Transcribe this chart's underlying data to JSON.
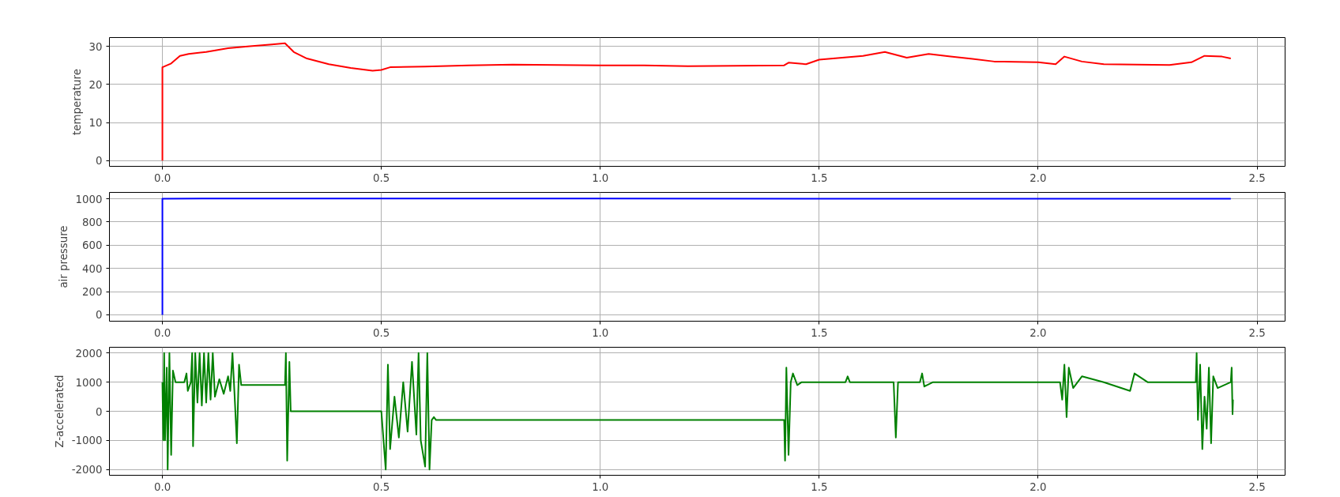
{
  "chart_data": [
    {
      "type": "line",
      "ylabel": "temperature",
      "xlim": [
        -0.121,
        2.564
      ],
      "xticks": [
        {
          "value": 0,
          "label": "0.0"
        },
        0.5,
        {
          "value": 1,
          "label": "1.0"
        },
        1.5,
        {
          "value": 2,
          "label": "2.0"
        },
        2.5
      ],
      "ylim": [
        -1.5,
        32.3
      ],
      "yticks": [
        0,
        10,
        20,
        30
      ],
      "grid": true,
      "series": [
        {
          "color": "#ff0000",
          "x": [
            0,
            0,
            0.02,
            0.04,
            0.06,
            0.1,
            0.15,
            0.2,
            0.25,
            0.28,
            0.3,
            0.33,
            0.38,
            0.43,
            0.48,
            0.5,
            0.52,
            0.6,
            0.7,
            0.8,
            1.0,
            1.1,
            1.2,
            1.42,
            1.43,
            1.47,
            1.5,
            1.6,
            1.65,
            1.7,
            1.75,
            1.8,
            1.85,
            1.9,
            2.0,
            2.04,
            2.06,
            2.1,
            2.15,
            2.3,
            2.35,
            2.38,
            2.42,
            2.44
          ],
          "values": [
            0,
            24.5,
            25.5,
            27.5,
            28,
            28.5,
            29.5,
            30,
            30.5,
            30.8,
            28.5,
            26.8,
            25.3,
            24.3,
            23.6,
            23.8,
            24.5,
            24.7,
            25,
            25.2,
            25,
            25,
            24.8,
            25,
            25.7,
            25.3,
            26.5,
            27.5,
            28.5,
            27,
            28,
            27.3,
            26.7,
            26,
            25.8,
            25.3,
            27.3,
            26,
            25.3,
            25.1,
            25.8,
            27.5,
            27.3,
            26.8
          ]
        }
      ]
    },
    {
      "type": "line",
      "ylabel": "air pressure",
      "xlim": [
        -0.121,
        2.564
      ],
      "xticks": [
        {
          "value": 0,
          "label": "0.0"
        },
        0.5,
        {
          "value": 1,
          "label": "1.0"
        },
        1.5,
        {
          "value": 2,
          "label": "2.0"
        },
        2.5
      ],
      "ylim": [
        -55,
        1055
      ],
      "yticks": [
        0,
        200,
        400,
        600,
        800,
        1000
      ],
      "grid": true,
      "series": [
        {
          "color": "#0000ff",
          "x": [
            0,
            0,
            0.1,
            0.6,
            2.44
          ],
          "values": [
            0,
            1000,
            1003,
            1002,
            1000
          ]
        }
      ]
    },
    {
      "type": "line",
      "ylabel": "Z-accelerated",
      "xlim": [
        -0.121,
        2.564
      ],
      "xticks": [
        {
          "value": 0,
          "label": "0.0"
        },
        0.5,
        {
          "value": 1,
          "label": "1.0"
        },
        1.5,
        {
          "value": 2,
          "label": "2.0"
        },
        2.5
      ],
      "ylim": [
        -2200,
        2200
      ],
      "yticks": [
        -2000,
        -1000,
        0,
        1000,
        2000
      ],
      "grid": true,
      "series": [
        {
          "color": "#008000",
          "x": [
            0,
            0.002,
            0.004,
            0.006,
            0.01,
            0.012,
            0.016,
            0.02,
            0.024,
            0.03,
            0.05,
            0.055,
            0.058,
            0.065,
            0.068,
            0.07,
            0.075,
            0.08,
            0.085,
            0.09,
            0.095,
            0.1,
            0.105,
            0.11,
            0.115,
            0.12,
            0.13,
            0.14,
            0.15,
            0.155,
            0.16,
            0.165,
            0.17,
            0.175,
            0.18,
            0.28,
            0.282,
            0.285,
            0.29,
            0.293,
            0.5,
            0.51,
            0.515,
            0.52,
            0.53,
            0.54,
            0.55,
            0.56,
            0.57,
            0.58,
            0.585,
            0.59,
            0.6,
            0.605,
            0.61,
            0.615,
            0.62,
            0.625,
            1.42,
            1.422,
            1.425,
            1.43,
            1.435,
            1.44,
            1.45,
            1.46,
            1.56,
            1.565,
            1.57,
            1.67,
            1.675,
            1.68,
            1.73,
            1.735,
            1.74,
            1.76,
            2.05,
            2.055,
            2.06,
            2.065,
            2.07,
            2.08,
            2.1,
            2.15,
            2.21,
            2.22,
            2.25,
            2.36,
            2.362,
            2.365,
            2.37,
            2.375,
            2.38,
            2.385,
            2.39,
            2.395,
            2.4,
            2.41,
            2.44,
            2.442,
            2.444,
            2.445
          ],
          "values": [
            1000,
            -1000,
            2000,
            -1000,
            1500,
            -2000,
            2000,
            -1500,
            1400,
            1000,
            1000,
            1300,
            700,
            1000,
            2000,
            -1200,
            2000,
            300,
            2000,
            200,
            2000,
            300,
            2000,
            400,
            2000,
            500,
            1100,
            600,
            1200,
            700,
            2000,
            500,
            -1100,
            1600,
            900,
            900,
            2000,
            -1700,
            1700,
            0,
            0,
            -2000,
            1600,
            -1300,
            500,
            -900,
            1000,
            -700,
            1700,
            -800,
            2000,
            -1000,
            -1900,
            2000,
            -2000,
            -300,
            -200,
            -300,
            -300,
            -1700,
            1500,
            -1500,
            1000,
            1300,
            900,
            1000,
            1000,
            1200,
            1000,
            1000,
            -900,
            1000,
            1000,
            1300,
            850,
            1000,
            1000,
            400,
            1600,
            -200,
            1500,
            800,
            1200,
            1000,
            700,
            1300,
            1000,
            1000,
            2000,
            -300,
            1600,
            -1300,
            500,
            -600,
            1500,
            -1100,
            1200,
            800,
            1000,
            1500,
            -100,
            400
          ]
        }
      ]
    }
  ]
}
